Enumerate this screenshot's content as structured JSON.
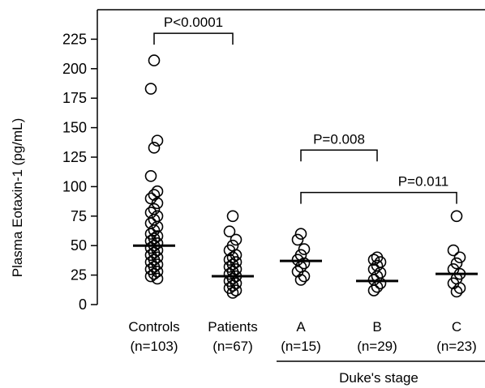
{
  "chart_data": {
    "type": "scatter",
    "ylabel": "Plasma Eotaxin-1 (pg/mL)",
    "xlabel": "",
    "ylim": [
      0,
      250
    ],
    "yticks": [
      0,
      25,
      50,
      75,
      100,
      125,
      150,
      175,
      200,
      225
    ],
    "grid": false,
    "legend": "none",
    "marker": "open-circle",
    "marker_color": "#000000",
    "categories": [
      {
        "label": "Controls",
        "n_label": "(n=103)",
        "median": 50,
        "points": [
          207,
          183,
          139,
          133,
          109,
          96,
          93,
          90,
          86,
          81,
          78,
          75,
          72,
          69,
          66,
          63,
          60,
          58,
          56,
          54,
          52,
          50,
          48,
          46,
          44,
          42,
          40,
          38,
          36,
          34,
          32,
          30,
          28,
          26,
          24,
          22
        ]
      },
      {
        "label": "Patients",
        "n_label": "(n=67)",
        "median": 24,
        "points": [
          75,
          62,
          55,
          50,
          46,
          42,
          40,
          38,
          36,
          34,
          32,
          30,
          28,
          26,
          24,
          22,
          20,
          18,
          16,
          14,
          12,
          10
        ]
      },
      {
        "label": "A",
        "n_label": "(n=15)",
        "median": 37,
        "points": [
          60,
          55,
          47,
          42,
          38,
          35,
          32,
          28,
          24,
          21
        ]
      },
      {
        "label": "B",
        "n_label": "(n=29)",
        "median": 20,
        "points": [
          40,
          38,
          36,
          33,
          30,
          27,
          24,
          21,
          18,
          15,
          12
        ]
      },
      {
        "label": "C",
        "n_label": "(n=23)",
        "median": 26,
        "points": [
          75,
          46,
          40,
          35,
          30,
          26,
          22,
          18,
          14,
          11
        ]
      }
    ],
    "annotations": [
      {
        "text": "P<0.0001",
        "from": 0,
        "to": 1,
        "y": 230
      },
      {
        "text": "P=0.008",
        "from": 2,
        "to": 3,
        "y": 131
      },
      {
        "text": "P=0.011",
        "from": 2,
        "to": 4,
        "y": 95
      }
    ],
    "group_label": {
      "text": "Duke's stage",
      "from": 2,
      "to": 4
    }
  }
}
